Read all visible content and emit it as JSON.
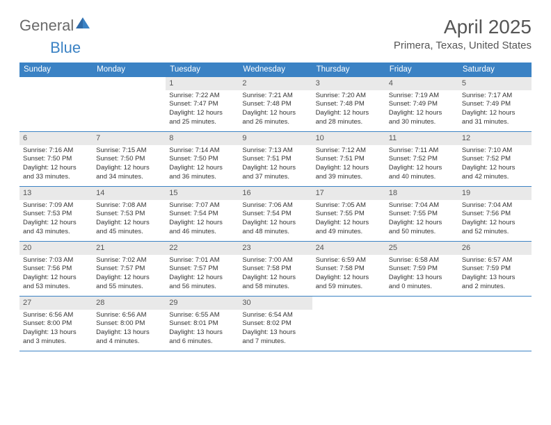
{
  "brand": {
    "part1": "General",
    "part2": "Blue"
  },
  "title": "April 2025",
  "location": "Primera, Texas, United States",
  "colors": {
    "accent": "#3b82c4",
    "header_bg": "#3b82c4",
    "header_text": "#ffffff",
    "daynum_bg": "#e9e9e9",
    "text": "#333333",
    "muted_text": "#555555",
    "page_bg": "#ffffff"
  },
  "weekdays": [
    "Sunday",
    "Monday",
    "Tuesday",
    "Wednesday",
    "Thursday",
    "Friday",
    "Saturday"
  ],
  "layout": {
    "leading_blanks": 2,
    "days_in_month": 30
  },
  "days": {
    "1": {
      "sunrise": "Sunrise: 7:22 AM",
      "sunset": "Sunset: 7:47 PM",
      "daylight1": "Daylight: 12 hours",
      "daylight2": "and 25 minutes."
    },
    "2": {
      "sunrise": "Sunrise: 7:21 AM",
      "sunset": "Sunset: 7:48 PM",
      "daylight1": "Daylight: 12 hours",
      "daylight2": "and 26 minutes."
    },
    "3": {
      "sunrise": "Sunrise: 7:20 AM",
      "sunset": "Sunset: 7:48 PM",
      "daylight1": "Daylight: 12 hours",
      "daylight2": "and 28 minutes."
    },
    "4": {
      "sunrise": "Sunrise: 7:19 AM",
      "sunset": "Sunset: 7:49 PM",
      "daylight1": "Daylight: 12 hours",
      "daylight2": "and 30 minutes."
    },
    "5": {
      "sunrise": "Sunrise: 7:17 AM",
      "sunset": "Sunset: 7:49 PM",
      "daylight1": "Daylight: 12 hours",
      "daylight2": "and 31 minutes."
    },
    "6": {
      "sunrise": "Sunrise: 7:16 AM",
      "sunset": "Sunset: 7:50 PM",
      "daylight1": "Daylight: 12 hours",
      "daylight2": "and 33 minutes."
    },
    "7": {
      "sunrise": "Sunrise: 7:15 AM",
      "sunset": "Sunset: 7:50 PM",
      "daylight1": "Daylight: 12 hours",
      "daylight2": "and 34 minutes."
    },
    "8": {
      "sunrise": "Sunrise: 7:14 AM",
      "sunset": "Sunset: 7:50 PM",
      "daylight1": "Daylight: 12 hours",
      "daylight2": "and 36 minutes."
    },
    "9": {
      "sunrise": "Sunrise: 7:13 AM",
      "sunset": "Sunset: 7:51 PM",
      "daylight1": "Daylight: 12 hours",
      "daylight2": "and 37 minutes."
    },
    "10": {
      "sunrise": "Sunrise: 7:12 AM",
      "sunset": "Sunset: 7:51 PM",
      "daylight1": "Daylight: 12 hours",
      "daylight2": "and 39 minutes."
    },
    "11": {
      "sunrise": "Sunrise: 7:11 AM",
      "sunset": "Sunset: 7:52 PM",
      "daylight1": "Daylight: 12 hours",
      "daylight2": "and 40 minutes."
    },
    "12": {
      "sunrise": "Sunrise: 7:10 AM",
      "sunset": "Sunset: 7:52 PM",
      "daylight1": "Daylight: 12 hours",
      "daylight2": "and 42 minutes."
    },
    "13": {
      "sunrise": "Sunrise: 7:09 AM",
      "sunset": "Sunset: 7:53 PM",
      "daylight1": "Daylight: 12 hours",
      "daylight2": "and 43 minutes."
    },
    "14": {
      "sunrise": "Sunrise: 7:08 AM",
      "sunset": "Sunset: 7:53 PM",
      "daylight1": "Daylight: 12 hours",
      "daylight2": "and 45 minutes."
    },
    "15": {
      "sunrise": "Sunrise: 7:07 AM",
      "sunset": "Sunset: 7:54 PM",
      "daylight1": "Daylight: 12 hours",
      "daylight2": "and 46 minutes."
    },
    "16": {
      "sunrise": "Sunrise: 7:06 AM",
      "sunset": "Sunset: 7:54 PM",
      "daylight1": "Daylight: 12 hours",
      "daylight2": "and 48 minutes."
    },
    "17": {
      "sunrise": "Sunrise: 7:05 AM",
      "sunset": "Sunset: 7:55 PM",
      "daylight1": "Daylight: 12 hours",
      "daylight2": "and 49 minutes."
    },
    "18": {
      "sunrise": "Sunrise: 7:04 AM",
      "sunset": "Sunset: 7:55 PM",
      "daylight1": "Daylight: 12 hours",
      "daylight2": "and 50 minutes."
    },
    "19": {
      "sunrise": "Sunrise: 7:04 AM",
      "sunset": "Sunset: 7:56 PM",
      "daylight1": "Daylight: 12 hours",
      "daylight2": "and 52 minutes."
    },
    "20": {
      "sunrise": "Sunrise: 7:03 AM",
      "sunset": "Sunset: 7:56 PM",
      "daylight1": "Daylight: 12 hours",
      "daylight2": "and 53 minutes."
    },
    "21": {
      "sunrise": "Sunrise: 7:02 AM",
      "sunset": "Sunset: 7:57 PM",
      "daylight1": "Daylight: 12 hours",
      "daylight2": "and 55 minutes."
    },
    "22": {
      "sunrise": "Sunrise: 7:01 AM",
      "sunset": "Sunset: 7:57 PM",
      "daylight1": "Daylight: 12 hours",
      "daylight2": "and 56 minutes."
    },
    "23": {
      "sunrise": "Sunrise: 7:00 AM",
      "sunset": "Sunset: 7:58 PM",
      "daylight1": "Daylight: 12 hours",
      "daylight2": "and 58 minutes."
    },
    "24": {
      "sunrise": "Sunrise: 6:59 AM",
      "sunset": "Sunset: 7:58 PM",
      "daylight1": "Daylight: 12 hours",
      "daylight2": "and 59 minutes."
    },
    "25": {
      "sunrise": "Sunrise: 6:58 AM",
      "sunset": "Sunset: 7:59 PM",
      "daylight1": "Daylight: 13 hours",
      "daylight2": "and 0 minutes."
    },
    "26": {
      "sunrise": "Sunrise: 6:57 AM",
      "sunset": "Sunset: 7:59 PM",
      "daylight1": "Daylight: 13 hours",
      "daylight2": "and 2 minutes."
    },
    "27": {
      "sunrise": "Sunrise: 6:56 AM",
      "sunset": "Sunset: 8:00 PM",
      "daylight1": "Daylight: 13 hours",
      "daylight2": "and 3 minutes."
    },
    "28": {
      "sunrise": "Sunrise: 6:56 AM",
      "sunset": "Sunset: 8:00 PM",
      "daylight1": "Daylight: 13 hours",
      "daylight2": "and 4 minutes."
    },
    "29": {
      "sunrise": "Sunrise: 6:55 AM",
      "sunset": "Sunset: 8:01 PM",
      "daylight1": "Daylight: 13 hours",
      "daylight2": "and 6 minutes."
    },
    "30": {
      "sunrise": "Sunrise: 6:54 AM",
      "sunset": "Sunset: 8:02 PM",
      "daylight1": "Daylight: 13 hours",
      "daylight2": "and 7 minutes."
    }
  }
}
